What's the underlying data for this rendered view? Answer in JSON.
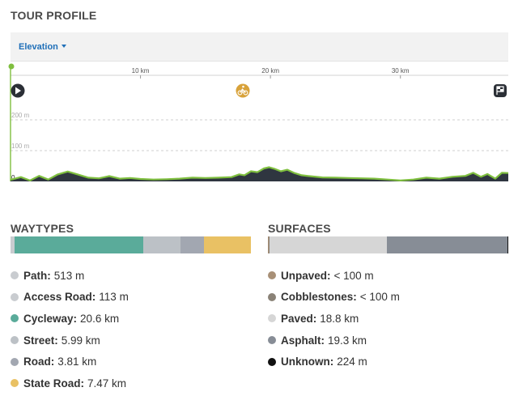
{
  "tour_profile": {
    "title": "TOUR PROFILE",
    "dropdown_label": "Elevation",
    "x_ticks": [
      {
        "km": 10,
        "label": "10 km"
      },
      {
        "km": 20,
        "label": "20 km"
      },
      {
        "km": 30,
        "label": "30 km"
      }
    ],
    "y_gridlines": [
      {
        "m": 200,
        "label": "200 m"
      },
      {
        "m": 100,
        "label": "100 m"
      },
      {
        "m": 0,
        "label": "0"
      }
    ],
    "total_km": 38.3,
    "max_m": 260,
    "start_icon": "play-icon",
    "mid_icon": "bicycle-icon",
    "end_icon": "finish-flag-icon",
    "elevation_profile": [
      [
        0.0,
        5
      ],
      [
        0.8,
        14
      ],
      [
        1.5,
        3
      ],
      [
        2.2,
        18
      ],
      [
        2.9,
        6
      ],
      [
        3.6,
        22
      ],
      [
        4.4,
        32
      ],
      [
        5.2,
        22
      ],
      [
        6.0,
        12
      ],
      [
        6.8,
        10
      ],
      [
        7.6,
        17
      ],
      [
        8.4,
        9
      ],
      [
        9.2,
        11
      ],
      [
        10.0,
        8
      ],
      [
        11.0,
        6
      ],
      [
        12.0,
        7
      ],
      [
        13.0,
        9
      ],
      [
        14.0,
        12
      ],
      [
        15.0,
        11
      ],
      [
        16.0,
        12
      ],
      [
        17.0,
        14
      ],
      [
        17.6,
        23
      ],
      [
        18.0,
        20
      ],
      [
        18.5,
        33
      ],
      [
        19.0,
        30
      ],
      [
        19.5,
        42
      ],
      [
        19.9,
        46
      ],
      [
        20.3,
        41
      ],
      [
        20.8,
        33
      ],
      [
        21.3,
        38
      ],
      [
        21.8,
        28
      ],
      [
        22.4,
        20
      ],
      [
        23.0,
        17
      ],
      [
        24.0,
        13
      ],
      [
        25.0,
        12
      ],
      [
        26.0,
        11
      ],
      [
        27.0,
        10
      ],
      [
        28.0,
        9
      ],
      [
        29.0,
        6
      ],
      [
        30.0,
        3
      ],
      [
        31.0,
        6
      ],
      [
        32.0,
        12
      ],
      [
        33.0,
        9
      ],
      [
        34.0,
        15
      ],
      [
        35.0,
        18
      ],
      [
        35.6,
        28
      ],
      [
        36.2,
        15
      ],
      [
        36.7,
        24
      ],
      [
        37.3,
        9
      ],
      [
        37.8,
        28
      ],
      [
        38.3,
        27
      ]
    ]
  },
  "waytypes": {
    "title": "WAYTYPES",
    "items": [
      {
        "label": "Path:",
        "value": "513 m",
        "color": "#c9ccd0",
        "km": 0.513
      },
      {
        "label": "Access Road:",
        "value": "113 m",
        "color": "#c9ccd0",
        "km": 0.113
      },
      {
        "label": "Cycleway:",
        "value": "20.6 km",
        "color": "#5aab9a",
        "km": 20.6
      },
      {
        "label": "Street:",
        "value": "5.99 km",
        "color": "#bcc1c6",
        "km": 5.99
      },
      {
        "label": "Road:",
        "value": "3.81 km",
        "color": "#a2a7b1",
        "km": 3.81
      },
      {
        "label": "State Road:",
        "value": "7.47 km",
        "color": "#e9c164",
        "km": 7.47
      }
    ]
  },
  "surfaces": {
    "title": "SURFACES",
    "items": [
      {
        "label": "Unpaved:",
        "value": "< 100 m",
        "color": "#a89077",
        "km": 0.05
      },
      {
        "label": "Cobblestones:",
        "value": "< 100 m",
        "color": "#8a8277",
        "km": 0.05
      },
      {
        "label": "Paved:",
        "value": "18.8 km",
        "color": "#d6d6d6",
        "km": 18.8
      },
      {
        "label": "Asphalt:",
        "value": "19.3 km",
        "color": "#878d96",
        "km": 19.3
      },
      {
        "label": "Unknown:",
        "value": "224 m",
        "color": "#111111",
        "km": 0.224
      }
    ]
  }
}
